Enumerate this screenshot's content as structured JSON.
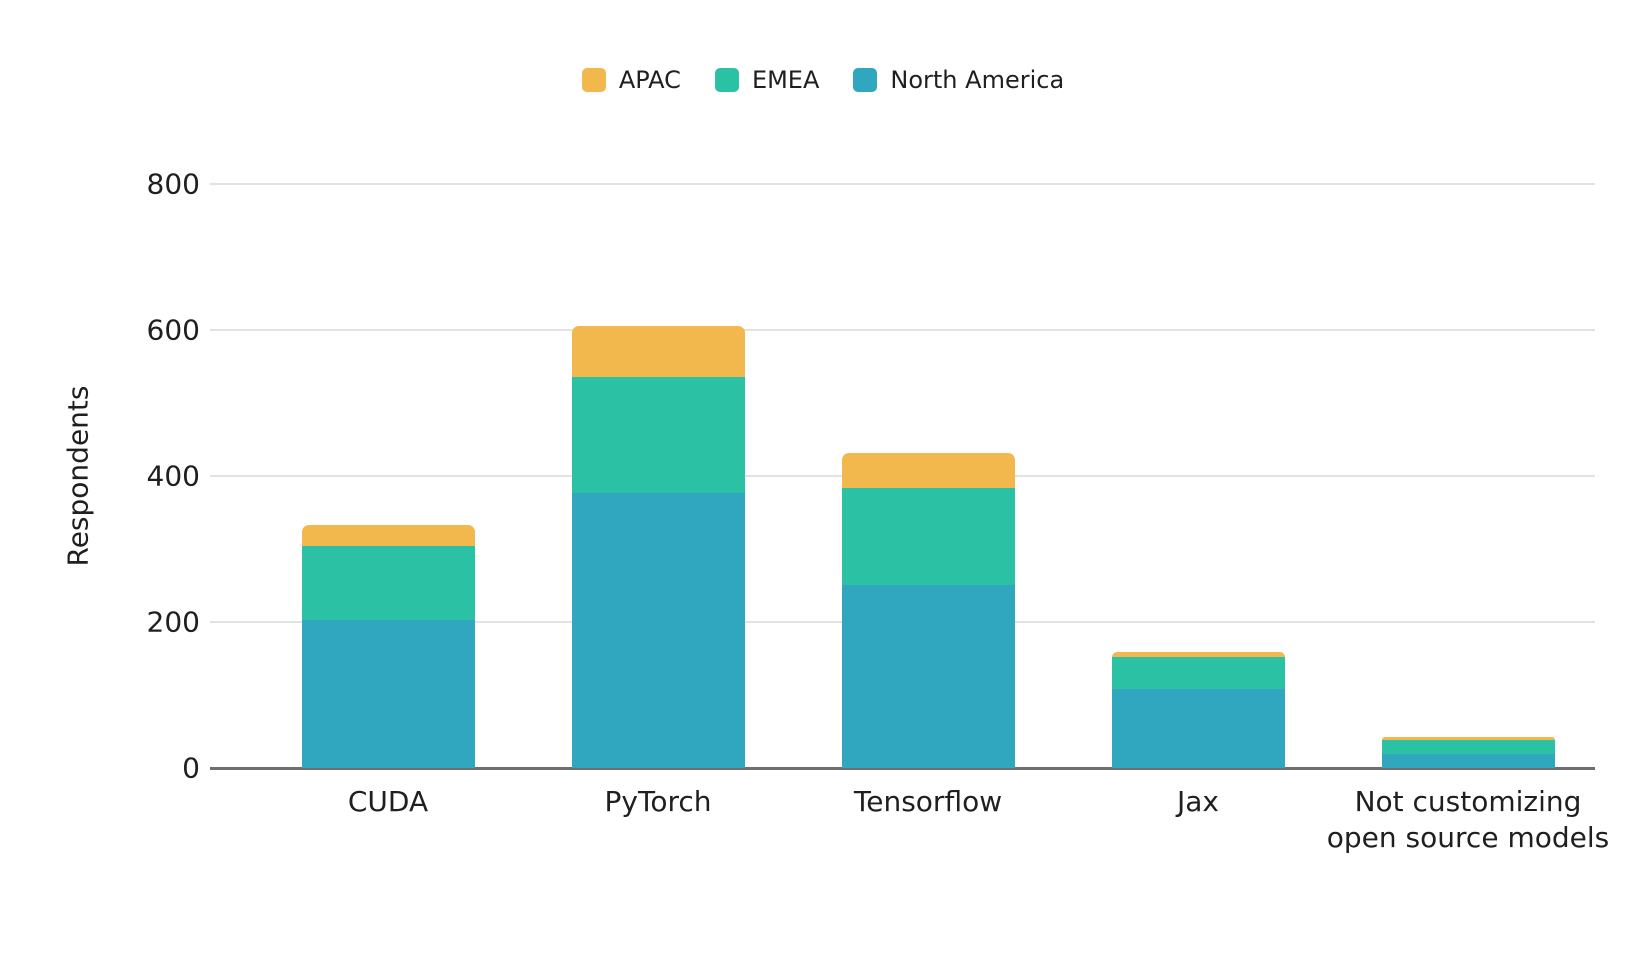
{
  "chart_data": {
    "type": "bar",
    "stacked": true,
    "title": "",
    "xlabel": "",
    "ylabel": "Respondents",
    "ylim": [
      0,
      800
    ],
    "yticks": [
      0,
      200,
      400,
      600,
      800
    ],
    "grid": true,
    "legend_position": "top-center",
    "legend_order": [
      "APAC",
      "EMEA",
      "North America"
    ],
    "categories": [
      "CUDA",
      "PyTorch",
      "Tensorflow",
      "Jax",
      "Not customizing\nopen source models"
    ],
    "series": [
      {
        "name": "North America",
        "color": "#30A6BF",
        "values": [
          203,
          377,
          251,
          108,
          19
        ]
      },
      {
        "name": "EMEA",
        "color": "#2BC1A5",
        "values": [
          101,
          159,
          133,
          44,
          19
        ]
      },
      {
        "name": "APAC",
        "color": "#F2B84E",
        "values": [
          29,
          70,
          48,
          7,
          4
        ]
      }
    ]
  },
  "colors": {
    "gridline": "#E2E2E2",
    "axis_line": "#6E6E6E",
    "text": "#1F1F1F",
    "background": "#FFFFFF"
  }
}
